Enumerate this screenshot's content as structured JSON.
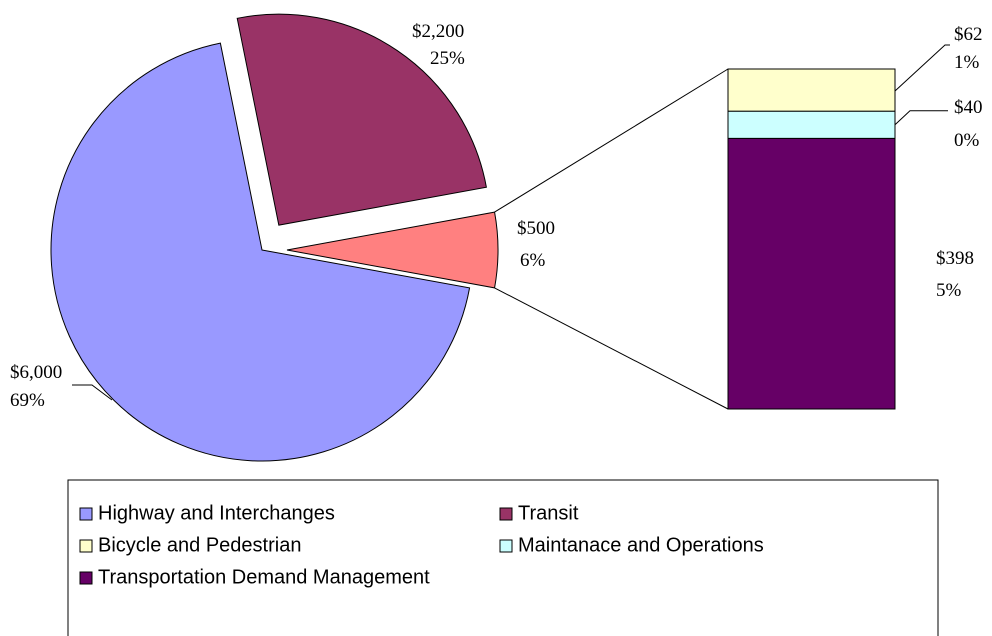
{
  "chart_data": {
    "type": "pie-of-bar",
    "pie": {
      "categories": [
        "Highway and Interchanges",
        "Transit",
        null
      ],
      "values": [
        6000,
        2200,
        500
      ],
      "value_labels": [
        "$6,000",
        "$2,200",
        "$500"
      ],
      "percents": [
        69,
        25,
        6
      ],
      "percent_labels": [
        "69%",
        "25%",
        "6%"
      ],
      "colors": [
        "#9999ff",
        "#993366",
        "#ff8080"
      ]
    },
    "bar": {
      "categories": [
        "Transportation Demand Management",
        "Maintanace and Operations",
        "Bicycle and Pedestrian"
      ],
      "values": [
        398,
        40,
        62
      ],
      "value_labels": [
        "$398",
        "$40",
        "$62"
      ],
      "percents": [
        5,
        0,
        1
      ],
      "percent_labels": [
        "5%",
        "0%",
        "1%"
      ],
      "colors": [
        "#660066",
        "#ccffff",
        "#ffffcc"
      ]
    },
    "legend": true
  }
}
